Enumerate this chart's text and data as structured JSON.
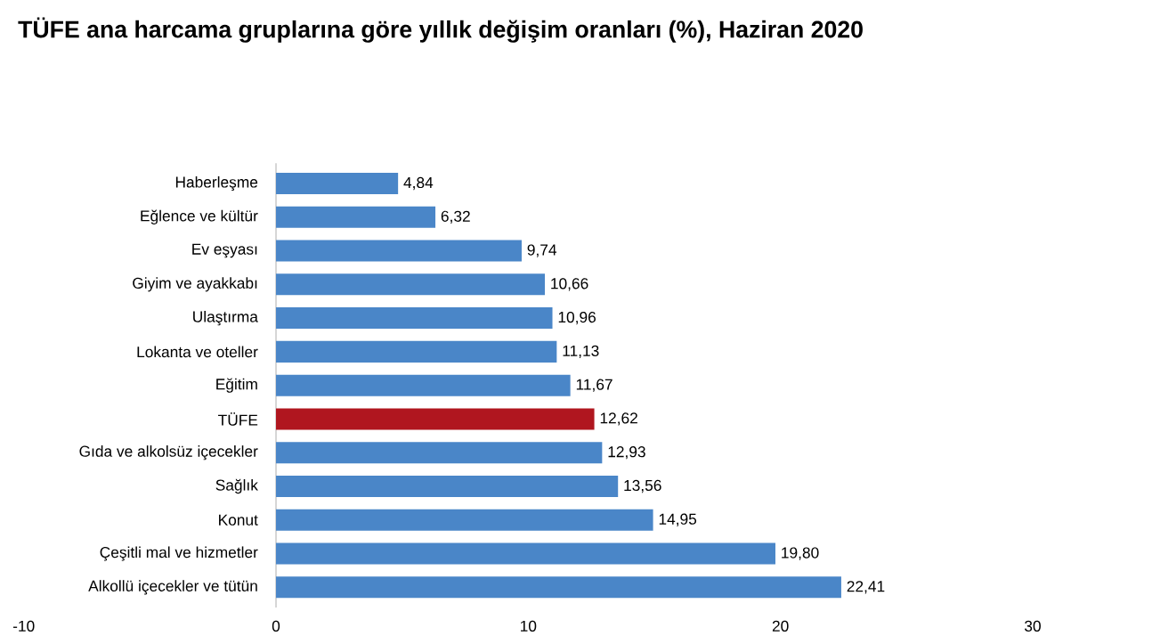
{
  "chart_data": {
    "type": "bar",
    "orientation": "horizontal",
    "title": "TÜFE ana harcama gruplarına göre yıllık değişim oranları (%), Haziran 2020",
    "categories": [
      "Haberleşme",
      "Eğlence ve kültür",
      "Ev eşyası",
      "Giyim ve ayakkabı",
      "Ulaştırma",
      "Lokanta ve oteller",
      "Eğitim",
      "TÜFE",
      "Gıda ve alkolsüz içecekler",
      "Sağlık",
      "Konut",
      "Çeşitli mal ve hizmetler",
      "Alkollü içecekler ve tütün"
    ],
    "values": [
      4.84,
      6.32,
      9.74,
      10.66,
      10.96,
      11.13,
      11.67,
      12.62,
      12.93,
      13.56,
      14.95,
      19.8,
      22.41
    ],
    "value_labels": [
      "4,84",
      "6,32",
      "9,74",
      "10,66",
      "10,96",
      "11,13",
      "11,67",
      "12,62",
      "12,93",
      "13,56",
      "14,95",
      "19,80",
      "22,41"
    ],
    "colors": [
      "#4a86c8",
      "#4a86c8",
      "#4a86c8",
      "#4a86c8",
      "#4a86c8",
      "#4a86c8",
      "#4a86c8",
      "#b0161f",
      "#4a86c8",
      "#4a86c8",
      "#4a86c8",
      "#4a86c8",
      "#4a86c8"
    ],
    "xlim": [
      -10,
      30
    ],
    "xticks": [
      -10,
      0,
      10,
      20,
      30
    ]
  }
}
